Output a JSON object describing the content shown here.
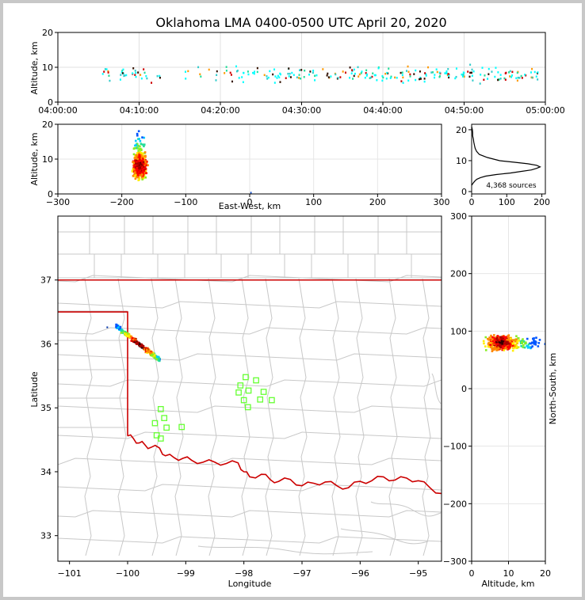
{
  "title": "Oklahoma LMA 0400-0500 UTC April 20, 2020",
  "source_count": "4,368 sources",
  "colors": {
    "border": "#cc0000",
    "county": "#c8c8c8",
    "station": "#66ff33",
    "axis": "#000000"
  },
  "chart_data": [
    {
      "name": "time-altitude",
      "type": "scatter",
      "xlabel": "",
      "ylabel": "Altitude, km",
      "xticks": [
        "04:00:00",
        "04:10:00",
        "04:20:00",
        "04:30:00",
        "04:40:00",
        "04:50:00",
        "05:00:00"
      ],
      "yticks": [
        "0",
        "10",
        "20"
      ],
      "xlim": [
        "04:00:00",
        "05:00:00"
      ],
      "ylim": [
        0,
        20
      ],
      "grid": true
    },
    {
      "name": "east-west-altitude",
      "type": "heatmap",
      "xlabel": "East-West, km",
      "ylabel": "Altitude, km",
      "xticks": [
        "−300",
        "−200",
        "−100",
        "0",
        "100",
        "200",
        "300"
      ],
      "yticks": [
        "0",
        "10",
        "20"
      ],
      "xlim": [
        -300,
        300
      ],
      "ylim": [
        0,
        20
      ],
      "cluster": {
        "x_range": [
          -195,
          -145
        ],
        "alt_range": [
          3,
          20
        ],
        "core_x": -172,
        "core_alt": 8
      },
      "grid": true
    },
    {
      "name": "altitude-histogram",
      "type": "line",
      "xticks": [
        "0",
        "100",
        "200"
      ],
      "yticks": [
        "0",
        "10",
        "20"
      ],
      "xlim": [
        0,
        210
      ],
      "ylim": [
        0,
        21
      ],
      "profile": [
        [
          0,
          21
        ],
        [
          2,
          20
        ],
        [
          3,
          19
        ],
        [
          3,
          18
        ],
        [
          5,
          17
        ],
        [
          6,
          16
        ],
        [
          8,
          15
        ],
        [
          10,
          14
        ],
        [
          14,
          13
        ],
        [
          22,
          12
        ],
        [
          45,
          11
        ],
        [
          80,
          10
        ],
        [
          120,
          9.5
        ],
        [
          160,
          9
        ],
        [
          185,
          8.5
        ],
        [
          195,
          8
        ],
        [
          185,
          7.5
        ],
        [
          170,
          7
        ],
        [
          140,
          6.5
        ],
        [
          110,
          6
        ],
        [
          70,
          5.5
        ],
        [
          40,
          5
        ],
        [
          25,
          4.5
        ],
        [
          15,
          4
        ],
        [
          10,
          3.5
        ],
        [
          6,
          3
        ],
        [
          3,
          2.5
        ],
        [
          0,
          2
        ]
      ]
    },
    {
      "name": "plan-view",
      "type": "scatter",
      "xlabel": "Longitude",
      "ylabel": "Latitude",
      "xticks": [
        "−101",
        "−100",
        "−99",
        "−98",
        "−97",
        "−96",
        "−95"
      ],
      "yticks": [
        "33",
        "34",
        "35",
        "36",
        "37"
      ],
      "xlim": [
        -101.2,
        -94.6
      ],
      "ylim": [
        32.6,
        38.0
      ],
      "stations": [
        [
          -97.97,
          35.48
        ],
        [
          -97.79,
          35.43
        ],
        [
          -98.06,
          35.35
        ],
        [
          -98.09,
          35.24
        ],
        [
          -97.92,
          35.27
        ],
        [
          -97.66,
          35.25
        ],
        [
          -98.0,
          35.12
        ],
        [
          -97.72,
          35.13
        ],
        [
          -97.52,
          35.12
        ],
        [
          -97.93,
          35.01
        ],
        [
          -99.43,
          34.98
        ],
        [
          -99.37,
          34.84
        ],
        [
          -99.53,
          34.76
        ],
        [
          -99.33,
          34.69
        ],
        [
          -99.07,
          34.7
        ],
        [
          -99.5,
          34.57
        ],
        [
          -99.43,
          34.52
        ]
      ],
      "lightning_cluster": {
        "lon_range": [
          -100.2,
          -99.45
        ],
        "lat_range": [
          35.75,
          36.28
        ],
        "core": [
          -99.85,
          35.95
        ]
      }
    },
    {
      "name": "altitude-north-south",
      "type": "heatmap",
      "xlabel": "Altitude, km",
      "ylabel": "North-South, km",
      "xticks": [
        "0",
        "10",
        "20"
      ],
      "yticks": [
        "300",
        "200",
        "100",
        "0",
        "−100",
        "−200",
        "−300"
      ],
      "xlim": [
        0,
        20
      ],
      "ylim": [
        -300,
        300
      ],
      "cluster": {
        "alt_range": [
          3,
          20
        ],
        "ns_range": [
          55,
          100
        ],
        "core_alt": 8,
        "core_ns": 80
      },
      "grid": true
    }
  ]
}
